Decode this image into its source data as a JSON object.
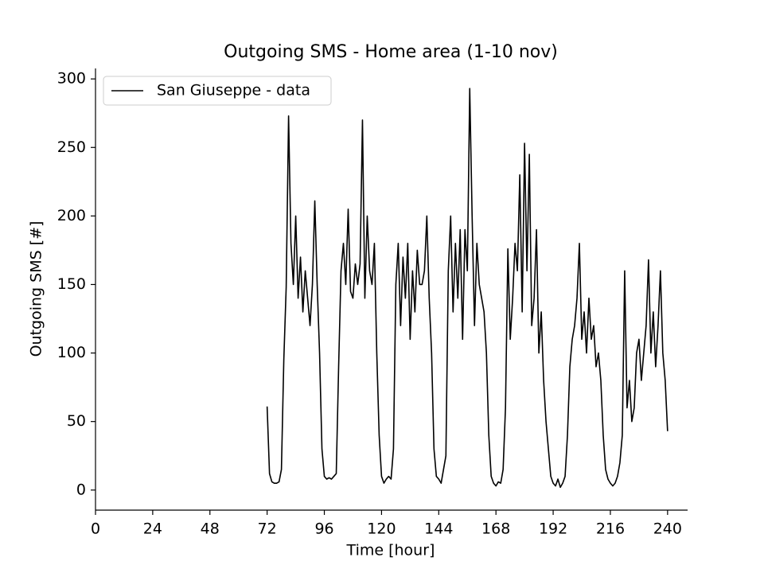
{
  "chart_data": {
    "type": "line",
    "title": "Outgoing SMS - Home area (1-10 nov)",
    "x_label": "Time [hour]",
    "y_label": "Outgoing SMS [#]",
    "x": [
      72,
      73,
      74,
      75,
      76,
      77,
      78,
      79,
      80,
      81,
      82,
      83,
      84,
      85,
      86,
      87,
      88,
      89,
      90,
      91,
      92,
      93,
      94,
      95,
      96,
      97,
      98,
      99,
      100,
      101,
      102,
      103,
      104,
      105,
      106,
      107,
      108,
      109,
      110,
      111,
      112,
      113,
      114,
      115,
      116,
      117,
      118,
      119,
      120,
      121,
      122,
      123,
      124,
      125,
      126,
      127,
      128,
      129,
      130,
      131,
      132,
      133,
      134,
      135,
      136,
      137,
      138,
      139,
      140,
      141,
      142,
      143,
      144,
      145,
      146,
      147,
      148,
      149,
      150,
      151,
      152,
      153,
      154,
      155,
      156,
      157,
      158,
      159,
      160,
      161,
      162,
      163,
      164,
      165,
      166,
      167,
      168,
      169,
      170,
      171,
      172,
      173,
      174,
      175,
      176,
      177,
      178,
      179,
      180,
      181,
      182,
      183,
      184,
      185,
      186,
      187,
      188,
      189,
      190,
      191,
      192,
      193,
      194,
      195,
      196,
      197,
      198,
      199,
      200,
      201,
      202,
      203,
      204,
      205,
      206,
      207,
      208,
      209,
      210,
      211,
      212,
      213,
      214,
      215,
      216,
      217,
      218,
      219,
      220,
      221,
      222,
      223,
      224,
      225,
      226,
      227,
      228,
      229,
      230,
      231,
      232,
      233,
      234,
      235,
      236,
      237,
      238,
      239,
      240
    ],
    "series": [
      {
        "name": "San Giuseppe - data",
        "color": "#000000",
        "values": [
          61,
          12,
          6,
          5,
          5,
          6,
          15,
          95,
          148,
          273,
          180,
          150,
          200,
          140,
          170,
          130,
          160,
          140,
          120,
          150,
          211,
          150,
          100,
          30,
          10,
          8,
          9,
          8,
          10,
          12,
          90,
          160,
          180,
          150,
          205,
          145,
          140,
          165,
          150,
          165,
          270,
          140,
          200,
          160,
          150,
          180,
          100,
          40,
          10,
          5,
          8,
          10,
          8,
          30,
          150,
          180,
          120,
          170,
          140,
          180,
          110,
          160,
          130,
          175,
          150,
          150,
          160,
          200,
          140,
          100,
          30,
          10,
          8,
          5,
          15,
          25,
          160,
          200,
          130,
          180,
          140,
          190,
          110,
          190,
          160,
          293,
          200,
          120,
          180,
          150,
          140,
          130,
          100,
          40,
          10,
          5,
          3,
          6,
          5,
          15,
          60,
          176,
          110,
          140,
          180,
          160,
          230,
          130,
          253,
          160,
          245,
          120,
          140,
          190,
          100,
          130,
          80,
          50,
          30,
          10,
          5,
          3,
          8,
          2,
          5,
          10,
          40,
          90,
          110,
          120,
          140,
          180,
          110,
          130,
          100,
          140,
          110,
          120,
          90,
          100,
          80,
          40,
          15,
          8,
          5,
          3,
          5,
          10,
          20,
          40,
          160,
          60,
          80,
          50,
          60,
          100,
          110,
          80,
          100,
          120,
          168,
          100,
          130,
          90,
          120,
          160,
          100,
          80,
          43
        ]
      }
    ],
    "xlim": [
      0,
      248.4
    ],
    "ylim": [
      -14.65,
      307.65
    ],
    "xticks": [
      0,
      24,
      48,
      72,
      96,
      120,
      144,
      168,
      192,
      216,
      240
    ],
    "yticks": [
      0,
      50,
      100,
      150,
      200,
      250,
      300
    ],
    "legend": "upper left"
  }
}
